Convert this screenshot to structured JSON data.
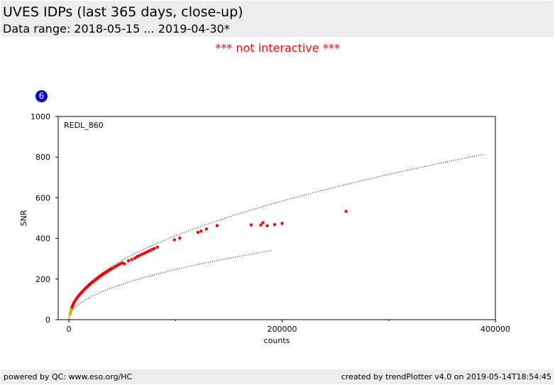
{
  "header": {
    "title": "UVES IDPs (last 365 days, close-up)",
    "subtitle": "Data range: 2018-05-15 ... 2019-04-30*"
  },
  "notice": "*** not interactive ***",
  "badge": "6",
  "footer": {
    "left": "powered by QC: www.eso.org/HC",
    "right": "created by trendPlotter v4.0 on 2019-05-14T18:54:45"
  },
  "colors": {
    "points": "#ff0000",
    "points_low": "#c8b400",
    "curves": "#000000",
    "notice": "#ff0000",
    "badge": "#0000ee",
    "header_bg": "#ececec"
  },
  "chart_data": {
    "type": "scatter",
    "annotation": "REDL_860",
    "xlabel": "counts",
    "ylabel": "SNR",
    "xlim": [
      -10000,
      400000
    ],
    "ylim": [
      0,
      1000
    ],
    "xticks": [
      0,
      200000,
      400000
    ],
    "yticks": [
      0,
      200,
      400,
      600,
      800,
      1000
    ],
    "grid": false,
    "series": [
      {
        "points": [
          [
            1000,
            25
          ],
          [
            1500,
            35
          ],
          [
            2000,
            45
          ],
          [
            2500,
            55
          ],
          [
            3000,
            62
          ],
          [
            3500,
            68
          ],
          [
            4000,
            75
          ],
          [
            4500,
            80
          ],
          [
            5000,
            86
          ],
          [
            6000,
            94
          ],
          [
            7000,
            102
          ],
          [
            8000,
            110
          ],
          [
            9000,
            116
          ],
          [
            10000,
            122
          ],
          [
            11000,
            128
          ],
          [
            12000,
            134
          ],
          [
            13000,
            140
          ],
          [
            14000,
            146
          ],
          [
            15000,
            151
          ],
          [
            16000,
            156
          ],
          [
            17000,
            161
          ],
          [
            18000,
            166
          ],
          [
            19000,
            171
          ],
          [
            20000,
            175
          ],
          [
            21000,
            180
          ],
          [
            22000,
            184
          ],
          [
            23000,
            188
          ],
          [
            24000,
            192
          ],
          [
            25000,
            196
          ],
          [
            26000,
            200
          ],
          [
            27000,
            204
          ],
          [
            28000,
            208
          ],
          [
            29000,
            212
          ],
          [
            30000,
            216
          ],
          [
            31000,
            220
          ],
          [
            32000,
            223
          ],
          [
            33000,
            227
          ],
          [
            34000,
            230
          ],
          [
            35000,
            234
          ],
          [
            36000,
            237
          ],
          [
            37000,
            240
          ],
          [
            38000,
            244
          ],
          [
            39000,
            247
          ],
          [
            40000,
            250
          ],
          [
            42000,
            256
          ],
          [
            44000,
            262
          ],
          [
            46000,
            268
          ],
          [
            48000,
            274
          ],
          [
            50000,
            279
          ],
          [
            52000,
            275
          ],
          [
            56000,
            290
          ],
          [
            59000,
            296
          ],
          [
            62000,
            303
          ],
          [
            64000,
            310
          ],
          [
            66000,
            315
          ],
          [
            68000,
            320
          ],
          [
            70000,
            325
          ],
          [
            72000,
            330
          ],
          [
            74000,
            335
          ],
          [
            76000,
            340
          ],
          [
            78000,
            345
          ],
          [
            80000,
            350
          ],
          [
            83000,
            357
          ],
          [
            99000,
            393
          ],
          [
            104000,
            402
          ],
          [
            121000,
            430
          ],
          [
            124000,
            436
          ],
          [
            129000,
            446
          ],
          [
            139000,
            463
          ],
          [
            171000,
            466
          ],
          [
            180000,
            466
          ],
          [
            182000,
            477
          ],
          [
            186000,
            462
          ],
          [
            193000,
            468
          ],
          [
            200000,
            474
          ],
          [
            260000,
            533
          ]
        ]
      }
    ],
    "curves": [
      {
        "name": "upper",
        "coef": 1.305,
        "xmax": 390000
      },
      {
        "name": "lower",
        "coef": 0.78,
        "xmax": 190000
      }
    ]
  }
}
